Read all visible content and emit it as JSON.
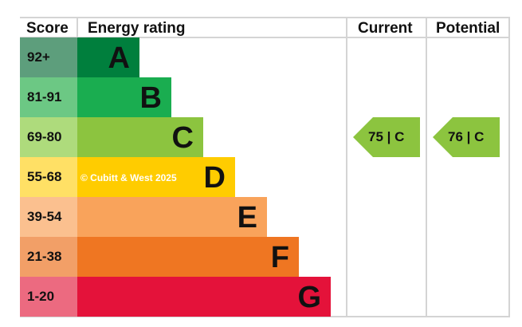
{
  "chart_data": {
    "type": "bar",
    "headers": {
      "score": "Score",
      "rating": "Energy rating",
      "current": "Current",
      "potential": "Potential"
    },
    "bands": [
      {
        "score": "92+",
        "letter": "A",
        "color": "#007f3d",
        "light": "#5d9e7c"
      },
      {
        "score": "81-91",
        "letter": "B",
        "color": "#1aad50",
        "light": "#6cc884"
      },
      {
        "score": "69-80",
        "letter": "C",
        "color": "#8cc43f",
        "light": "#aedb7c"
      },
      {
        "score": "55-68",
        "letter": "D",
        "color": "#ffcc00",
        "light": "#ffe065"
      },
      {
        "score": "39-54",
        "letter": "E",
        "color": "#f9a35b",
        "light": "#fbc08f"
      },
      {
        "score": "21-38",
        "letter": "F",
        "color": "#ef7622",
        "light": "#f29f67"
      },
      {
        "score": "1-20",
        "letter": "G",
        "color": "#e4123a",
        "light": "#ec6a80"
      }
    ],
    "current": {
      "value": 75,
      "band": "C",
      "label": "75 | C",
      "color": "#8cc43f"
    },
    "potential": {
      "value": 76,
      "band": "C",
      "label": "76 | C",
      "color": "#8cc43f"
    },
    "watermark": "© Cubitt & West 2025"
  }
}
